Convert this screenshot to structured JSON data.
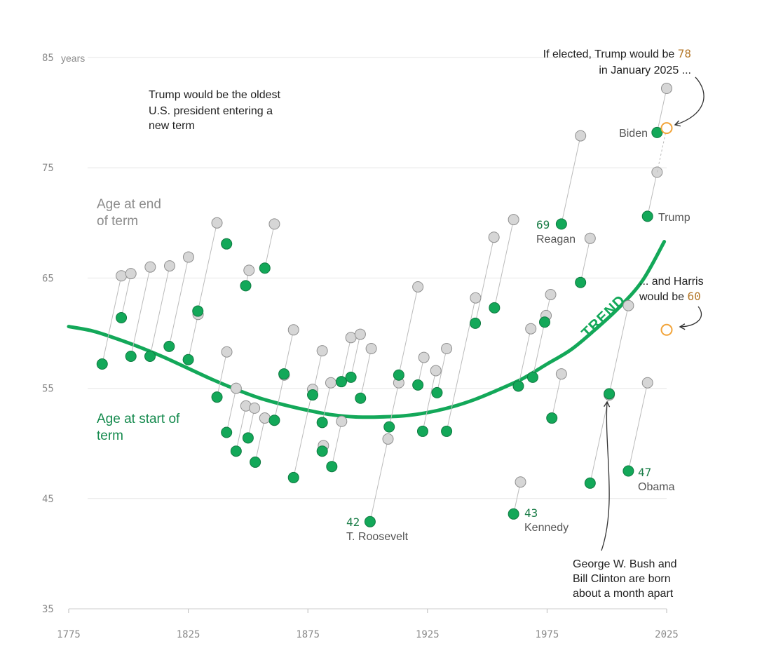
{
  "chart_data": {
    "type": "scatter",
    "title": "",
    "xlabel": "",
    "ylabel": "",
    "xlim": [
      1775,
      2025
    ],
    "ylim": [
      35,
      85
    ],
    "x_ticks": [
      "1775",
      "1825",
      "1875",
      "1925",
      "1975",
      "2025"
    ],
    "y_ticks": [
      "85",
      "75",
      "65",
      "55",
      "45",
      "35"
    ],
    "y_unit": "years",
    "grid": true,
    "colors": {
      "start": "#13a859",
      "end": "#cccccc",
      "trend": "#13a859",
      "highlight": "#f2a43a",
      "connector": "#bbbbbb"
    },
    "series": [
      {
        "name": "Age at start of term",
        "description_key": "start_age"
      },
      {
        "name": "Age at end of term",
        "description_key": "end_age"
      }
    ],
    "presidents": [
      {
        "start_year": 1789,
        "start_age": 57.2,
        "end_age": 65.2
      },
      {
        "start_year": 1797,
        "start_age": 61.4,
        "end_age": 65.4
      },
      {
        "start_year": 1801,
        "start_age": 57.9,
        "end_age": 66.0
      },
      {
        "start_year": 1809,
        "start_age": 57.9,
        "end_age": 66.1
      },
      {
        "start_year": 1817,
        "start_age": 58.8,
        "end_age": 66.9
      },
      {
        "start_year": 1825,
        "start_age": 57.6,
        "end_age": 61.7
      },
      {
        "start_year": 1829,
        "start_age": 62.0,
        "end_age": 70.0
      },
      {
        "start_year": 1837,
        "start_age": 54.2,
        "end_age": 58.3
      },
      {
        "start_year": 1841,
        "start_age": 68.1,
        "end_age": 68.1
      },
      {
        "start_year": 1841,
        "start_age": 51.0,
        "end_age": 55.0
      },
      {
        "start_year": 1845,
        "start_age": 49.3,
        "end_age": 53.4
      },
      {
        "start_year": 1849,
        "start_age": 64.3,
        "end_age": 65.7
      },
      {
        "start_year": 1850,
        "start_age": 50.5,
        "end_age": 53.2
      },
      {
        "start_year": 1853,
        "start_age": 48.3,
        "end_age": 52.3
      },
      {
        "start_year": 1857,
        "start_age": 65.9,
        "end_age": 69.9
      },
      {
        "start_year": 1861,
        "start_age": 52.1,
        "end_age": 56.2
      },
      {
        "start_year": 1865,
        "start_age": 56.3,
        "end_age": 60.3
      },
      {
        "start_year": 1869,
        "start_age": 46.9,
        "end_age": 54.9
      },
      {
        "start_year": 1877,
        "start_age": 54.4,
        "end_age": 58.4
      },
      {
        "start_year": 1881,
        "start_age": 49.3,
        "end_age": 49.8
      },
      {
        "start_year": 1881,
        "start_age": 51.9,
        "end_age": 55.5
      },
      {
        "start_year": 1885,
        "start_age": 47.9,
        "end_age": 52.0
      },
      {
        "start_year": 1889,
        "start_age": 55.6,
        "end_age": 59.6
      },
      {
        "start_year": 1893,
        "start_age": 56.0,
        "end_age": 59.9
      },
      {
        "start_year": 1897,
        "start_age": 54.1,
        "end_age": 58.6
      },
      {
        "start_year": 1901,
        "start_age": 42.9,
        "end_age": 50.4
      },
      {
        "start_year": 1909,
        "start_age": 51.5,
        "end_age": 55.5
      },
      {
        "start_year": 1913,
        "start_age": 56.2,
        "end_age": 64.2
      },
      {
        "start_year": 1921,
        "start_age": 55.3,
        "end_age": 57.8
      },
      {
        "start_year": 1923,
        "start_age": 51.1,
        "end_age": 56.6
      },
      {
        "start_year": 1929,
        "start_age": 54.6,
        "end_age": 58.6
      },
      {
        "start_year": 1933,
        "start_age": 51.1,
        "end_age": 63.2
      },
      {
        "start_year": 1945,
        "start_age": 60.9,
        "end_age": 68.7
      },
      {
        "start_year": 1953,
        "start_age": 62.3,
        "end_age": 70.3
      },
      {
        "start_year": 1961,
        "start_age": 43.6,
        "end_age": 46.5
      },
      {
        "start_year": 1963,
        "start_age": 55.2,
        "end_age": 60.4
      },
      {
        "start_year": 1969,
        "start_age": 56.0,
        "end_age": 61.6
      },
      {
        "start_year": 1974,
        "start_age": 61.0,
        "end_age": 63.5
      },
      {
        "start_year": 1977,
        "start_age": 52.3,
        "end_age": 56.3
      },
      {
        "start_year": 1981,
        "start_age": 69.9,
        "end_age": 77.9
      },
      {
        "start_year": 1989,
        "start_age": 64.6,
        "end_age": 68.6
      },
      {
        "start_year": 1993,
        "start_age": 46.4,
        "end_age": 54.4
      },
      {
        "start_year": 2001,
        "start_age": 54.5,
        "end_age": 62.5
      },
      {
        "start_year": 2009,
        "start_age": 47.5,
        "end_age": 55.5
      },
      {
        "start_year": 2017,
        "start_age": 70.6,
        "end_age": 74.6
      },
      {
        "start_year": 2021,
        "start_age": 78.2,
        "end_age": 82.2
      }
    ],
    "hypothetical": [
      {
        "start_year": 2025,
        "start_age": 78.6
      },
      {
        "start_year": 2025,
        "start_age": 60.3
      }
    ],
    "trend": [
      {
        "x": 1775,
        "y": 60.6
      },
      {
        "x": 1785,
        "y": 60.2
      },
      {
        "x": 1795,
        "y": 59.5
      },
      {
        "x": 1805,
        "y": 58.7
      },
      {
        "x": 1815,
        "y": 57.8
      },
      {
        "x": 1825,
        "y": 56.8
      },
      {
        "x": 1835,
        "y": 55.8
      },
      {
        "x": 1845,
        "y": 54.9
      },
      {
        "x": 1855,
        "y": 54.1
      },
      {
        "x": 1865,
        "y": 53.5
      },
      {
        "x": 1875,
        "y": 53.0
      },
      {
        "x": 1885,
        "y": 52.6
      },
      {
        "x": 1895,
        "y": 52.4
      },
      {
        "x": 1905,
        "y": 52.4
      },
      {
        "x": 1915,
        "y": 52.5
      },
      {
        "x": 1925,
        "y": 52.8
      },
      {
        "x": 1935,
        "y": 53.3
      },
      {
        "x": 1945,
        "y": 54.0
      },
      {
        "x": 1955,
        "y": 54.9
      },
      {
        "x": 1965,
        "y": 55.9
      },
      {
        "x": 1975,
        "y": 57.2
      },
      {
        "x": 1985,
        "y": 58.5
      },
      {
        "x": 1995,
        "y": 60.3
      },
      {
        "x": 2005,
        "y": 62.3
      },
      {
        "x": 2015,
        "y": 64.8
      },
      {
        "x": 2024,
        "y": 68.3
      }
    ],
    "trend_label": "TREND",
    "series_labels": {
      "end": [
        "Age at end",
        "of term"
      ],
      "start": [
        "Age at start of",
        "term"
      ]
    },
    "point_labels": {
      "reagan": {
        "num": "69",
        "name": "Reagan"
      },
      "roosevelt": {
        "num": "42",
        "name": "T. Roosevelt"
      },
      "kennedy": {
        "num": "43",
        "name": "Kennedy"
      },
      "obama": {
        "num": "47",
        "name": "Obama"
      },
      "biden": {
        "name": "Biden"
      },
      "trump": {
        "name": "Trump"
      }
    },
    "annotations": {
      "oldest": [
        "Trump would be the oldest",
        "U.S. president entering a",
        "new term"
      ],
      "trump_elected": {
        "line1_pre": "If elected, Trump would be ",
        "line1_num": "78",
        "line2": "in January 2025 ..."
      },
      "harris": {
        "line1": "... and Harris",
        "line2_pre": "would be ",
        "line2_num": "60"
      },
      "bush_clinton": [
        "George W. Bush and",
        "Bill Clinton are born",
        "about a month apart"
      ]
    }
  }
}
